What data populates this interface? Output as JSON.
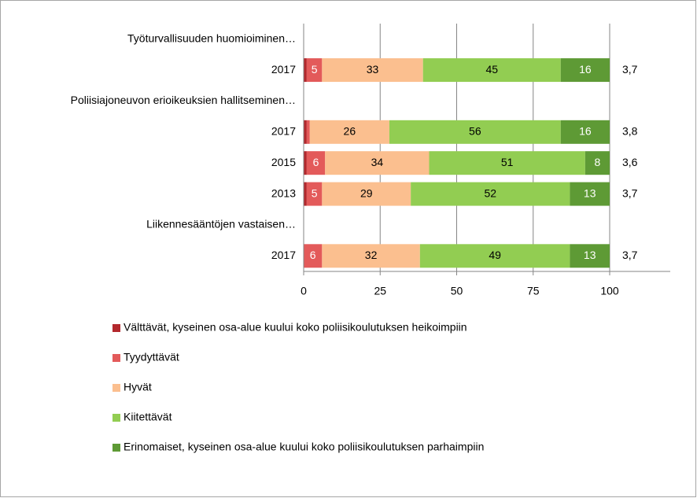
{
  "chart_data": {
    "type": "stacked-bar-horizontal",
    "categories": [
      "Työturvallisuuden huomioiminen…",
      "2017",
      "Poliisiajoneuvon erioikeuksien hallitseminen…",
      "2017",
      "2015",
      "2013",
      "Liikennesääntöjen vastaisen…",
      "2017"
    ],
    "series": [
      {
        "name": "Välttävät, kyseinen osa-alue kuului koko poliisikoulutuksen heikoimpiin",
        "color": "#b3282d",
        "values": [
          null,
          1,
          null,
          1,
          1,
          1,
          null,
          0
        ]
      },
      {
        "name": "Tyydyttävät",
        "color": "#e35a5a",
        "values": [
          null,
          5,
          null,
          1,
          6,
          5,
          null,
          6
        ]
      },
      {
        "name": "Hyvät",
        "color": "#fbbf8f",
        "values": [
          null,
          33,
          null,
          26,
          34,
          29,
          null,
          32
        ]
      },
      {
        "name": "Kiitettävät",
        "color": "#92cd52",
        "values": [
          null,
          45,
          null,
          56,
          51,
          52,
          null,
          49
        ]
      },
      {
        "name": "Erinomaiset, kyseinen osa-alue kuului koko poliisikoulutuksen parhaimpiin",
        "color": "#5e9a35",
        "values": [
          null,
          16,
          null,
          16,
          8,
          13,
          null,
          13
        ]
      }
    ],
    "mean_labels": [
      null,
      "3,7",
      null,
      "3,8",
      "3,6",
      "3,7",
      null,
      "3,7"
    ],
    "xlim": [
      0,
      100
    ],
    "xticks": [
      0,
      25,
      50,
      75,
      100
    ],
    "grid": true,
    "legend": "bottom"
  }
}
